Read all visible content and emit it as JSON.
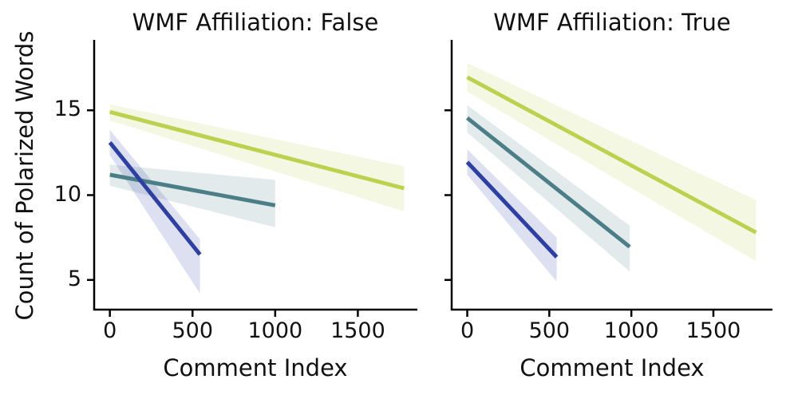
{
  "figure": {
    "background": "#ffffff",
    "axis_color": "#000000",
    "text_color": "#111111"
  },
  "chart_data": {
    "type": "line",
    "subtype": "regression-lines-with-confidence-bands",
    "xlabel": "Comment Index",
    "ylabel": "Count of Polarized Words",
    "x_ticks": [
      0,
      500,
      1000,
      1500
    ],
    "y_ticks": [
      5,
      10,
      15
    ],
    "x_domain": [
      -95,
      1860
    ],
    "y_domain": [
      3.25,
      19.15
    ],
    "grid": false,
    "legend": "none",
    "band_opacity": 0.16,
    "panels": [
      {
        "title": "WMF Affiliation: False",
        "series": [
          {
            "name": "green-series",
            "color": "#bcd14f",
            "line": {
              "x": [
                0,
                1780
              ],
              "y": [
                14.9,
                10.4
              ]
            },
            "band": {
              "x": [
                0,
                1780
              ],
              "upper": [
                15.35,
                11.7
              ],
              "lower": [
                14.4,
                9.05
              ]
            }
          },
          {
            "name": "teal-series",
            "color": "#4c7e87",
            "line": {
              "x": [
                0,
                1000
              ],
              "y": [
                11.2,
                9.4
              ]
            },
            "band": {
              "x": [
                0,
                1000
              ],
              "upper": [
                11.8,
                10.9
              ],
              "lower": [
                10.55,
                8.1
              ]
            }
          },
          {
            "name": "blue-series",
            "color": "#2d3fa0",
            "line": {
              "x": [
                0,
                545
              ],
              "y": [
                13.1,
                6.5
              ]
            },
            "band": {
              "x": [
                0,
                545
              ],
              "upper": [
                13.85,
                7.4
              ],
              "lower": [
                12.35,
                4.2
              ]
            }
          }
        ]
      },
      {
        "title": "WMF Affiliation: True",
        "series": [
          {
            "name": "green-series",
            "color": "#bcd14f",
            "line": {
              "x": [
                0,
                1760
              ],
              "y": [
                16.95,
                7.8
              ]
            },
            "band": {
              "x": [
                0,
                1760
              ],
              "upper": [
                17.8,
                9.7
              ],
              "lower": [
                16.1,
                6.1
              ]
            }
          },
          {
            "name": "teal-series",
            "color": "#4c7e87",
            "line": {
              "x": [
                0,
                990
              ],
              "y": [
                14.55,
                6.95
              ]
            },
            "band": {
              "x": [
                0,
                990
              ],
              "upper": [
                15.3,
                8.2
              ],
              "lower": [
                13.7,
                5.5
              ]
            }
          },
          {
            "name": "blue-series",
            "color": "#2d3fa0",
            "line": {
              "x": [
                0,
                545
              ],
              "y": [
                11.95,
                6.35
              ]
            },
            "band": {
              "x": [
                0,
                545
              ],
              "upper": [
                12.7,
                7.5
              ],
              "lower": [
                11.2,
                4.9
              ]
            }
          }
        ]
      }
    ]
  }
}
